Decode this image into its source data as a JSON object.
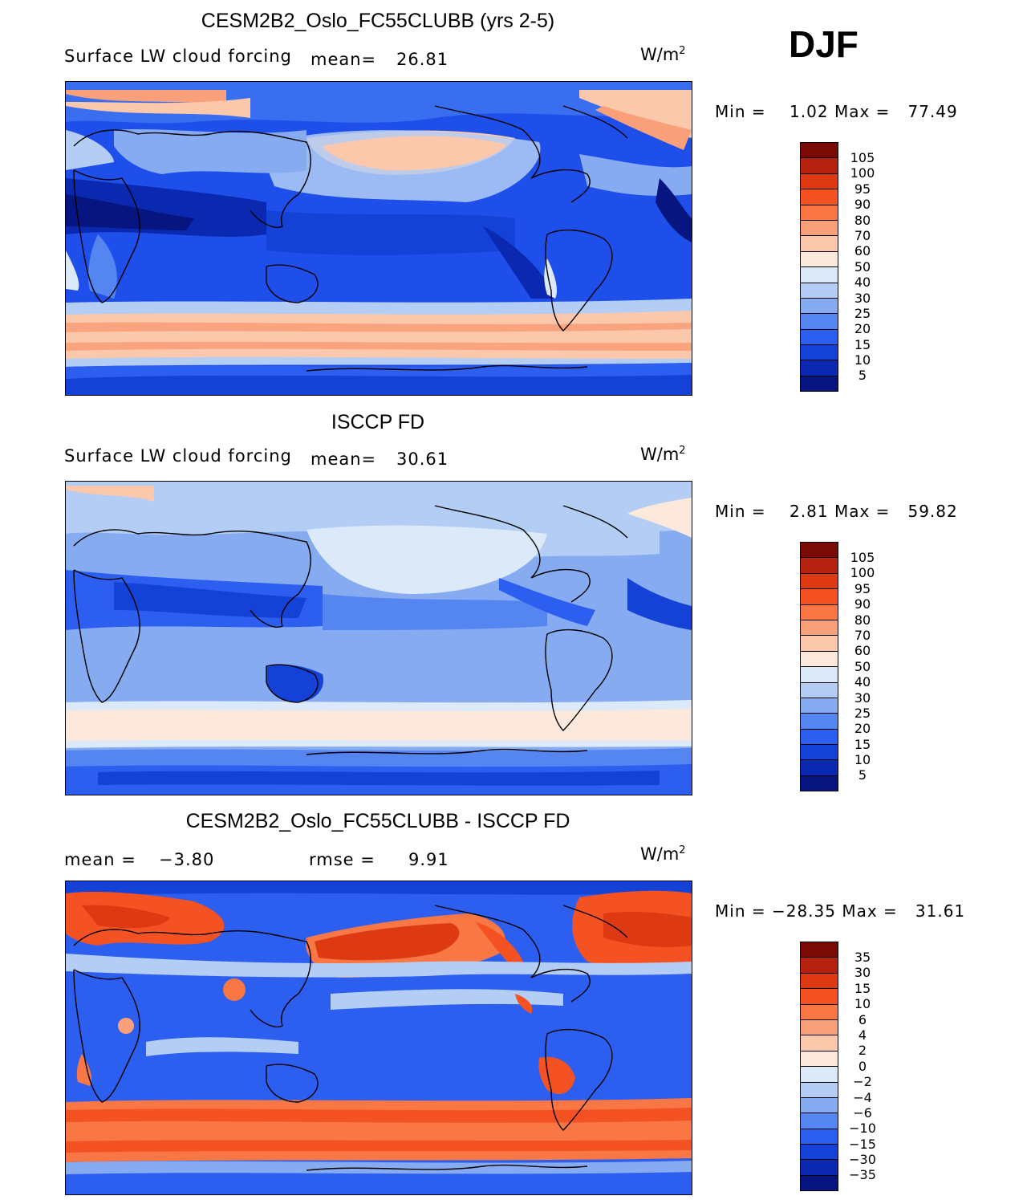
{
  "season": "DJF",
  "units_base": "W/m",
  "units_exp": "2",
  "panels": [
    {
      "title": "CESM2B2_Oslo_FC55CLUBB (yrs 2-5)",
      "variable": "Surface LW cloud forcing",
      "mean_label": "mean=",
      "mean_value": "26.81",
      "min_label": "Min =",
      "min_value": "1.02",
      "max_label": "Max =",
      "max_value": "77.49",
      "colorbar_labels": [
        "105",
        "100",
        "95",
        "90",
        "80",
        "70",
        "60",
        "50",
        "40",
        "30",
        "25",
        "20",
        "15",
        "10",
        "5"
      ],
      "colorbar_colors": [
        "#7a0a05",
        "#b5220f",
        "#dd3a13",
        "#f55223",
        "#f97645",
        "#f9a07a",
        "#fbc8ac",
        "#fde8dc",
        "#dce9f9",
        "#b3cdf4",
        "#87abf1",
        "#5585f1",
        "#2c5ff0",
        "#1441d6",
        "#0a28b0",
        "#061580"
      ]
    },
    {
      "title": "ISCCP FD",
      "variable": "Surface LW cloud forcing",
      "mean_label": "mean=",
      "mean_value": "30.61",
      "min_label": "Min =",
      "min_value": "2.81",
      "max_label": "Max =",
      "max_value": "59.82",
      "colorbar_labels": [
        "105",
        "100",
        "95",
        "90",
        "80",
        "70",
        "60",
        "50",
        "40",
        "30",
        "25",
        "20",
        "15",
        "10",
        "5"
      ],
      "colorbar_colors": [
        "#7a0a05",
        "#b5220f",
        "#dd3a13",
        "#f55223",
        "#f97645",
        "#f9a07a",
        "#fbc8ac",
        "#fde8dc",
        "#dce9f9",
        "#b3cdf4",
        "#87abf1",
        "#5585f1",
        "#2c5ff0",
        "#1441d6",
        "#0a28b0",
        "#061580"
      ]
    },
    {
      "title": "CESM2B2_Oslo_FC55CLUBB - ISCCP FD",
      "mean_label": "mean =",
      "mean_value": "−3.80",
      "rmse_label": "rmse =",
      "rmse_value": "9.91",
      "min_label": "Min =",
      "min_value": "−28.35",
      "max_label": "Max =",
      "max_value": "31.61",
      "colorbar_labels": [
        "35",
        "30",
        "15",
        "10",
        "6",
        "4",
        "2",
        "0",
        "−2",
        "−4",
        "−6",
        "−10",
        "−15",
        "−30",
        "−35"
      ],
      "colorbar_colors": [
        "#7a0a05",
        "#b5220f",
        "#dd3a13",
        "#f55223",
        "#f97645",
        "#f9a07a",
        "#fbc8ac",
        "#fde8dc",
        "#dce9f9",
        "#b3cdf4",
        "#87abf1",
        "#5585f1",
        "#2c5ff0",
        "#1441d6",
        "#0a28b0",
        "#061580"
      ]
    }
  ]
}
